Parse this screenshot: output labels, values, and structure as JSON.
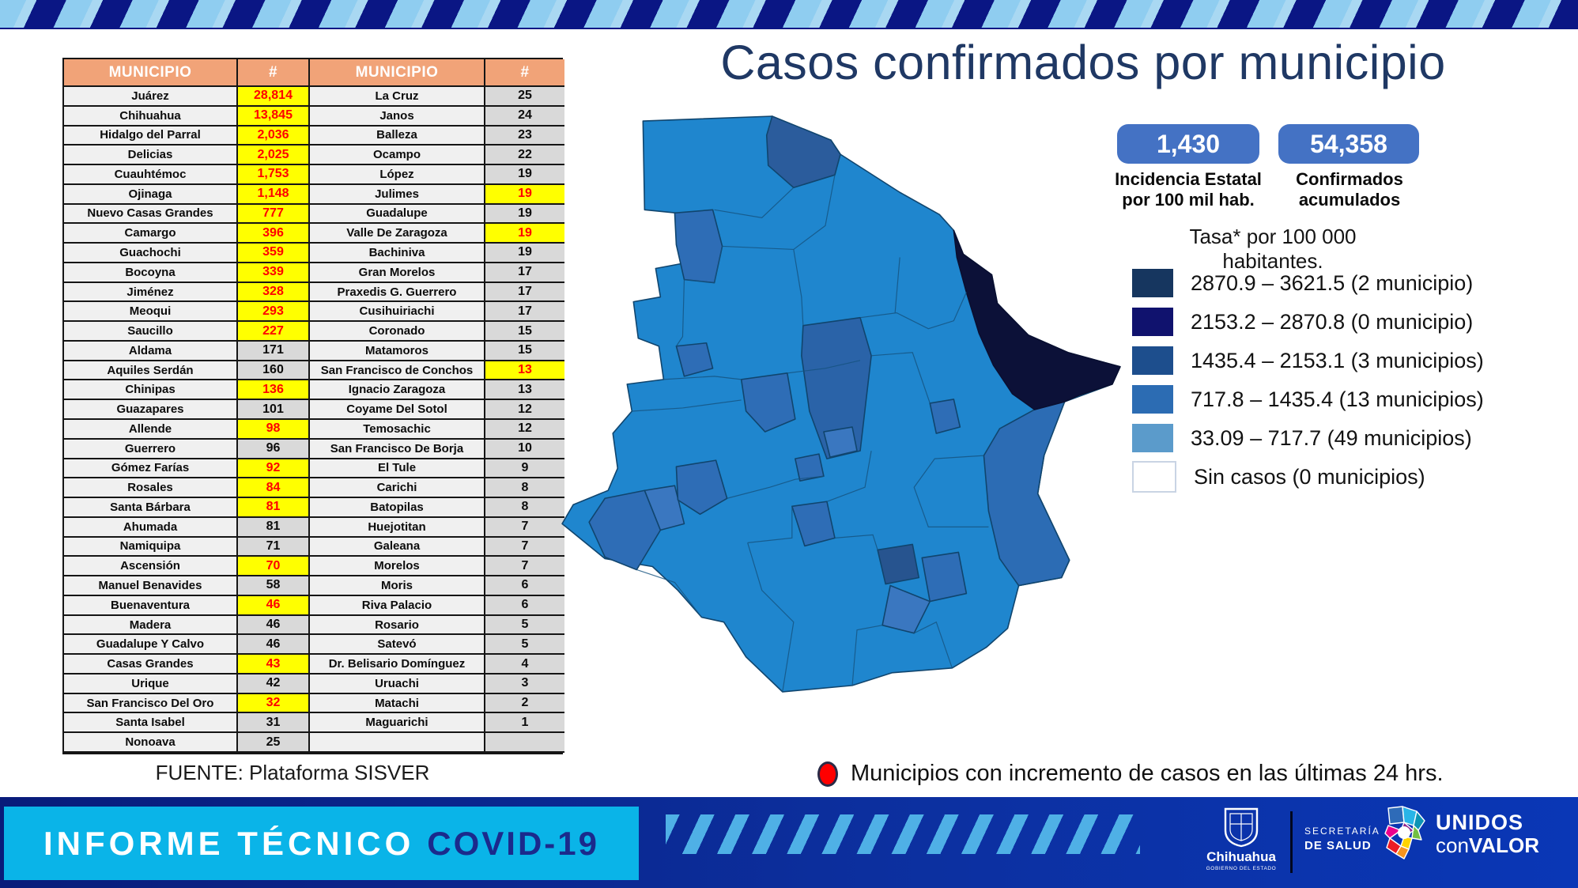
{
  "title": "Casos confirmados por municipio",
  "stats": {
    "incidencia": {
      "value": "1,430",
      "label": "Incidencia Estatal por 100 mil hab."
    },
    "confirmados": {
      "value": "54,358",
      "label": "Confirmados acumulados"
    },
    "tasa_note": "Tasa* por 100 000 habitantes."
  },
  "table": {
    "headers": [
      "MUNICIPIO",
      "#",
      "MUNICIPIO",
      "#"
    ],
    "rows": [
      [
        "Juárez",
        "28,814",
        1,
        "La Cruz",
        "25",
        0
      ],
      [
        "Chihuahua",
        "13,845",
        1,
        "Janos",
        "24",
        0
      ],
      [
        "Hidalgo del Parral",
        "2,036",
        1,
        "Balleza",
        "23",
        0
      ],
      [
        "Delicias",
        "2,025",
        1,
        "Ocampo",
        "22",
        0
      ],
      [
        "Cuauhtémoc",
        "1,753",
        1,
        "López",
        "19",
        0
      ],
      [
        "Ojinaga",
        "1,148",
        1,
        "Julimes",
        "19",
        1
      ],
      [
        "Nuevo Casas Grandes",
        "777",
        1,
        "Guadalupe",
        "19",
        0
      ],
      [
        "Camargo",
        "396",
        1,
        "Valle De Zaragoza",
        "19",
        1
      ],
      [
        "Guachochi",
        "359",
        1,
        "Bachiniva",
        "19",
        0
      ],
      [
        "Bocoyna",
        "339",
        1,
        "Gran Morelos",
        "17",
        0
      ],
      [
        "Jiménez",
        "328",
        1,
        "Praxedis G. Guerrero",
        "17",
        0
      ],
      [
        "Meoqui",
        "293",
        1,
        "Cusihuiriachi",
        "17",
        0
      ],
      [
        "Saucillo",
        "227",
        1,
        "Coronado",
        "15",
        0
      ],
      [
        "Aldama",
        "171",
        0,
        "Matamoros",
        "15",
        0
      ],
      [
        "Aquiles Serdán",
        "160",
        0,
        "San Francisco de Conchos",
        "13",
        1
      ],
      [
        "Chinipas",
        "136",
        1,
        "Ignacio Zaragoza",
        "13",
        0
      ],
      [
        "Guazapares",
        "101",
        0,
        "Coyame Del Sotol",
        "12",
        0
      ],
      [
        "Allende",
        "98",
        1,
        "Temosachic",
        "12",
        0
      ],
      [
        "Guerrero",
        "96",
        0,
        "San Francisco De Borja",
        "10",
        0
      ],
      [
        "Gómez Farías",
        "92",
        1,
        "El Tule",
        "9",
        0
      ],
      [
        "Rosales",
        "84",
        1,
        "Carichi",
        "8",
        0
      ],
      [
        "Santa Bárbara",
        "81",
        1,
        "Batopilas",
        "8",
        0
      ],
      [
        "Ahumada",
        "81",
        0,
        "Huejotitan",
        "7",
        0
      ],
      [
        "Namiquipa",
        "71",
        0,
        "Galeana",
        "7",
        0
      ],
      [
        "Ascensión",
        "70",
        1,
        "Morelos",
        "7",
        0
      ],
      [
        "Manuel Benavides",
        "58",
        0,
        "Moris",
        "6",
        0
      ],
      [
        "Buenaventura",
        "46",
        1,
        "Riva Palacio",
        "6",
        0
      ],
      [
        "Madera",
        "46",
        0,
        "Rosario",
        "5",
        0
      ],
      [
        "Guadalupe Y Calvo",
        "46",
        0,
        "Satevó",
        "5",
        0
      ],
      [
        "Casas Grandes",
        "43",
        1,
        "Dr. Belisario Domínguez",
        "4",
        0
      ],
      [
        "Urique",
        "42",
        0,
        "Uruachi",
        "3",
        0
      ],
      [
        "San Francisco Del Oro",
        "32",
        1,
        "Matachi",
        "2",
        0
      ],
      [
        "Santa Isabel",
        "31",
        0,
        "Maguarichi",
        "1",
        0
      ],
      [
        "Nonoava",
        "25",
        0,
        "",
        "",
        0
      ]
    ]
  },
  "source": "FUENTE: Plataforma SISVER",
  "legend": {
    "items": [
      {
        "range": "2870.9 – 3621.5 (2 municipio)",
        "color": "#16365f"
      },
      {
        "range": "2153.2 – 2870.8 (0 municipio)",
        "color": "#10126e"
      },
      {
        "range": "1435.4 – 2153.1 (3 municipios)",
        "color": "#1d4e8d"
      },
      {
        "range": "717.8 – 1435.4 (13 municipios)",
        "color": "#2c6cb3"
      },
      {
        "range": "33.09 – 717.7 (49 municipios)",
        "color": "#5b9bcb"
      },
      {
        "range": "Sin casos (0 municipios)",
        "color": "#ffffff"
      }
    ]
  },
  "note": {
    "text": "Municipios con incremento de casos en las últimas 24 hrs.",
    "marker_color": "#ff0000"
  },
  "footer": {
    "informe": "INFORME TÉCNICO",
    "covid": "COVID-19",
    "gobierno_name": "Chihuahua",
    "gobierno_sub": "GOBIERNO DEL ESTADO",
    "secretaria_line1": "SECRETARÍA",
    "secretaria_line2": "DE SALUD",
    "unidos_line1": "UNIDOS",
    "unidos_con": "con",
    "unidos_valor": "VALOR"
  },
  "colors": {
    "accent_pill": "#4472c4",
    "table_header": "#f1a378",
    "highlight": "#ffff00",
    "highlight_text": "#fe0000",
    "banner_navy": "#0a1684",
    "footer_cyan": "#0ab4e8",
    "title_navy": "#1f3864",
    "map_base": "#1f86ce",
    "map_dark": "#0c1138"
  }
}
